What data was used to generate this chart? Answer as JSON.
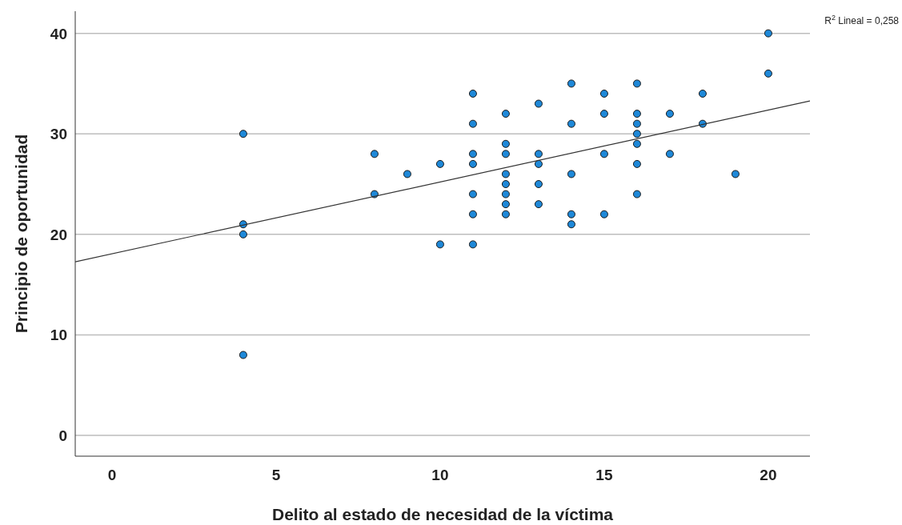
{
  "chart_data": {
    "type": "scatter",
    "xlabel": "Delito al estado de necesidad de la víctima",
    "ylabel": "Principio de oportunidad",
    "annotations": [
      "R$^{2}$ Lineal = 0,258"
    ],
    "xlim": [
      -1.12,
      21.27
    ],
    "ylim": [
      -2.07,
      42.2
    ],
    "xticks": [
      0,
      5,
      10,
      15,
      20
    ],
    "yticks": [
      0,
      10,
      20,
      30,
      40
    ],
    "grid": "y",
    "series": [
      {
        "color": "#1e88d8",
        "marker": "circle",
        "x": [
          4,
          4,
          4,
          4,
          8,
          8,
          9,
          10,
          10,
          11,
          11,
          11,
          11,
          11,
          11,
          11,
          12,
          12,
          12,
          12,
          12,
          12,
          12,
          12,
          13,
          13,
          13,
          13,
          13,
          14,
          14,
          14,
          14,
          14,
          15,
          15,
          15,
          15,
          16,
          16,
          16,
          16,
          16,
          16,
          16,
          17,
          17,
          18,
          18,
          19,
          20,
          20
        ],
        "values": [
          30,
          21,
          20,
          8,
          28,
          24,
          26,
          27,
          19,
          34,
          31,
          28,
          27,
          24,
          22,
          19,
          32,
          29,
          28,
          26,
          25,
          24,
          23,
          22,
          33,
          28,
          27,
          25,
          23,
          35,
          31,
          26,
          22,
          21,
          34,
          32,
          28,
          22,
          35,
          32,
          31,
          30,
          29,
          27,
          24,
          32,
          28,
          34,
          31,
          26,
          40,
          36
        ]
      },
      {
        "type": "line",
        "color": "#333333",
        "x": [
          -1.12,
          21.27
        ],
        "values": [
          17.26,
          33.27
        ]
      }
    ]
  }
}
